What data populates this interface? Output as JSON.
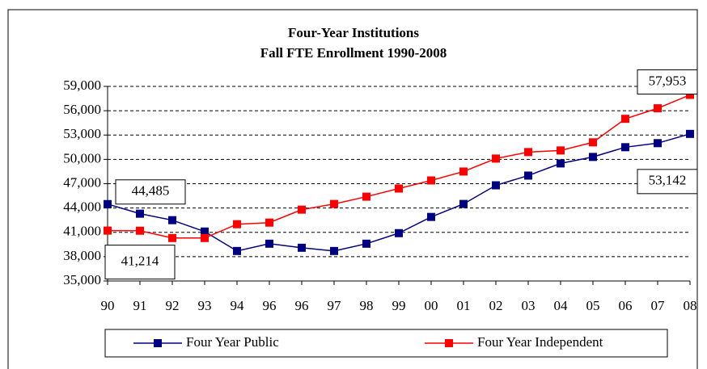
{
  "chart_data": {
    "type": "line",
    "title": "Four-Year Institutions",
    "subtitle": "Fall FTE Enrollment 1990-2008",
    "categories": [
      "90",
      "91",
      "92",
      "93",
      "94",
      "96",
      "96",
      "97",
      "98",
      "99",
      "00",
      "01",
      "02",
      "03",
      "04",
      "05",
      "06",
      "07",
      "08"
    ],
    "series": [
      {
        "name": "Four Year Public",
        "color": "#000080",
        "values": [
          44485,
          43300,
          42500,
          41100,
          38700,
          39600,
          39100,
          38700,
          39600,
          40900,
          42900,
          44500,
          46800,
          48000,
          49500,
          50300,
          51500,
          52000,
          53142
        ],
        "value_labels": [
          "44,485",
          null,
          null,
          null,
          null,
          null,
          null,
          null,
          null,
          null,
          null,
          null,
          null,
          null,
          null,
          null,
          null,
          null,
          "53,142"
        ]
      },
      {
        "name": "Four Year Independent",
        "color": "#ff0000",
        "values": [
          41214,
          41200,
          40300,
          40300,
          42000,
          42200,
          43800,
          44500,
          45400,
          46400,
          47400,
          48500,
          50100,
          50900,
          51100,
          52100,
          55000,
          56300,
          57953
        ],
        "value_labels": [
          "41,214",
          null,
          null,
          null,
          null,
          null,
          null,
          null,
          null,
          null,
          null,
          null,
          null,
          null,
          null,
          null,
          null,
          null,
          "57,953"
        ]
      }
    ],
    "ylim": [
      35000,
      59000
    ],
    "yticks": [
      {
        "value": 35000,
        "label": "35,000"
      },
      {
        "value": 38000,
        "label": "38,000"
      },
      {
        "value": 41000,
        "label": "41,000"
      },
      {
        "value": 44000,
        "label": "44,000"
      },
      {
        "value": 47000,
        "label": "47,000"
      },
      {
        "value": 50000,
        "label": "50,000"
      },
      {
        "value": 53000,
        "label": "53,000"
      },
      {
        "value": 56000,
        "label": "56,000"
      },
      {
        "value": 59000,
        "label": "59,000"
      }
    ],
    "grid": true,
    "legend": "bottom"
  }
}
